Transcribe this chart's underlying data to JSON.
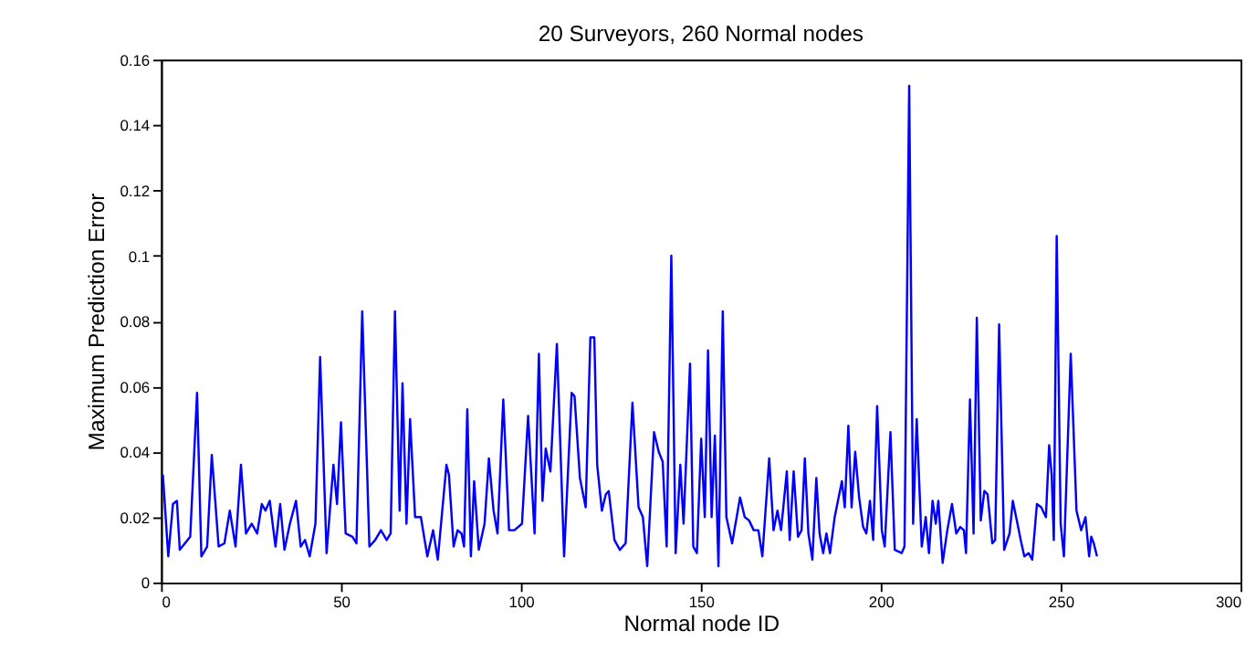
{
  "chart_data": {
    "type": "line",
    "title": "20 Surveyors, 260 Normal nodes",
    "xlabel": "Normal node ID",
    "ylabel": "Maximum Prediction Error",
    "x": [
      0.5,
      2,
      3.3,
      4.4,
      5.2,
      8.1,
      10,
      11.2,
      12.8,
      14.1,
      16,
      17.6,
      19.1,
      20.7,
      22.2,
      23.6,
      25.2,
      26.7,
      28,
      29,
      30.2,
      31.8,
      33.1,
      34.3,
      35.8,
      37.5,
      38.8,
      40,
      41.3,
      42.9,
      44.2,
      46,
      47.9,
      48.9,
      50,
      51.3,
      53.2,
      54.3,
      55.9,
      57.9,
      59.5,
      61.1,
      62.7,
      63.8,
      65,
      66.3,
      67.1,
      68.2,
      69.2,
      70.6,
      72.2,
      74,
      75.6,
      76.9,
      79.3,
      80,
      81.3,
      82.4,
      83.5,
      84.2,
      85.1,
      86.1,
      87,
      88.3,
      89.9,
      91.1,
      92.4,
      93.5,
      95.1,
      96.7,
      98.2,
      100.3,
      102,
      103.8,
      105,
      106,
      106.9,
      108.2,
      110,
      112,
      114.1,
      114.9,
      116.4,
      118,
      119.3,
      120.4,
      121.2,
      122.5,
      123.6,
      124.4,
      126,
      127.5,
      129.1,
      131,
      132.7,
      133.9,
      135.1,
      137,
      138.3,
      139.4,
      140.5,
      141.8,
      143,
      144.3,
      145.2,
      147,
      147.9,
      148.9,
      150.1,
      151.1,
      152,
      153,
      153.9,
      154.9,
      156.1,
      157.1,
      158.7,
      160.9,
      162.2,
      163.4,
      164.7,
      166,
      167.1,
      169,
      170.2,
      171.3,
      172.3,
      173.9,
      174.7,
      175.8,
      177,
      178,
      178.9,
      179.9,
      181,
      182.1,
      183,
      184,
      184.9,
      185.9,
      187.2,
      189.2,
      190,
      191,
      191.9,
      192.9,
      194,
      195.1,
      196,
      197,
      197.9,
      199,
      200.3,
      201.1,
      202.7,
      203.9,
      205.8,
      206.6,
      207.9,
      209,
      210,
      211.4,
      212.5,
      213.4,
      214.4,
      215.3,
      216,
      217.2,
      218.5,
      219.8,
      221,
      222.1,
      223.1,
      223.7,
      224.8,
      225.8,
      226.7,
      227.8,
      228.8,
      229.7,
      231,
      231.8,
      232.9,
      234.3,
      235.8,
      236.7,
      238,
      238.9,
      239.9,
      241.1,
      242.1,
      243.4,
      244.6,
      245.9,
      246.8,
      247.5,
      248.1,
      248.9,
      250,
      250.9,
      252.8,
      254.4,
      255.7,
      256.9,
      257.9,
      258.5,
      259.2,
      260.1
    ],
    "series": [
      {
        "color": "#0000ff",
        "values": [
          0.033,
          0.008,
          0.024,
          0.025,
          0.01,
          0.014,
          0.058,
          0.008,
          0.011,
          0.039,
          0.011,
          0.012,
          0.022,
          0.011,
          0.036,
          0.015,
          0.018,
          0.015,
          0.024,
          0.022,
          0.025,
          0.011,
          0.024,
          0.01,
          0.018,
          0.025,
          0.011,
          0.013,
          0.008,
          0.018,
          0.069,
          0.009,
          0.036,
          0.024,
          0.049,
          0.015,
          0.014,
          0.012,
          0.083,
          0.011,
          0.013,
          0.016,
          0.013,
          0.015,
          0.083,
          0.022,
          0.061,
          0.018,
          0.05,
          0.02,
          0.02,
          0.008,
          0.016,
          0.007,
          0.036,
          0.033,
          0.011,
          0.016,
          0.015,
          0.011,
          0.053,
          0.008,
          0.031,
          0.01,
          0.018,
          0.038,
          0.022,
          0.015,
          0.056,
          0.016,
          0.016,
          0.018,
          0.051,
          0.015,
          0.07,
          0.025,
          0.041,
          0.034,
          0.073,
          0.008,
          0.058,
          0.057,
          0.032,
          0.023,
          0.075,
          0.075,
          0.036,
          0.022,
          0.027,
          0.028,
          0.013,
          0.01,
          0.012,
          0.055,
          0.023,
          0.02,
          0.005,
          0.046,
          0.04,
          0.037,
          0.011,
          0.1,
          0.009,
          0.036,
          0.018,
          0.067,
          0.011,
          0.009,
          0.044,
          0.02,
          0.071,
          0.02,
          0.045,
          0.005,
          0.083,
          0.02,
          0.012,
          0.026,
          0.02,
          0.019,
          0.016,
          0.016,
          0.008,
          0.038,
          0.016,
          0.022,
          0.016,
          0.034,
          0.013,
          0.034,
          0.014,
          0.016,
          0.038,
          0.015,
          0.007,
          0.032,
          0.015,
          0.009,
          0.015,
          0.009,
          0.02,
          0.031,
          0.023,
          0.048,
          0.023,
          0.04,
          0.026,
          0.017,
          0.015,
          0.025,
          0.013,
          0.054,
          0.016,
          0.011,
          0.046,
          0.01,
          0.009,
          0.011,
          0.152,
          0.018,
          0.05,
          0.011,
          0.02,
          0.009,
          0.025,
          0.018,
          0.025,
          0.006,
          0.016,
          0.024,
          0.015,
          0.017,
          0.016,
          0.009,
          0.056,
          0.015,
          0.081,
          0.019,
          0.028,
          0.027,
          0.012,
          0.013,
          0.079,
          0.01,
          0.015,
          0.025,
          0.018,
          0.013,
          0.008,
          0.009,
          0.007,
          0.024,
          0.023,
          0.02,
          0.042,
          0.033,
          0.013,
          0.106,
          0.018,
          0.008,
          0.07,
          0.022,
          0.016,
          0.02,
          0.008,
          0.014,
          0.012,
          0.008
        ]
      }
    ],
    "xlim": [
      0,
      300
    ],
    "ylim": [
      0,
      0.16
    ],
    "xticks": [
      0,
      50,
      100,
      150,
      200,
      250,
      300
    ],
    "yticks": [
      0,
      0.02,
      0.04,
      0.06,
      0.08,
      0.1,
      0.12,
      0.14,
      0.16
    ],
    "grid": false
  }
}
